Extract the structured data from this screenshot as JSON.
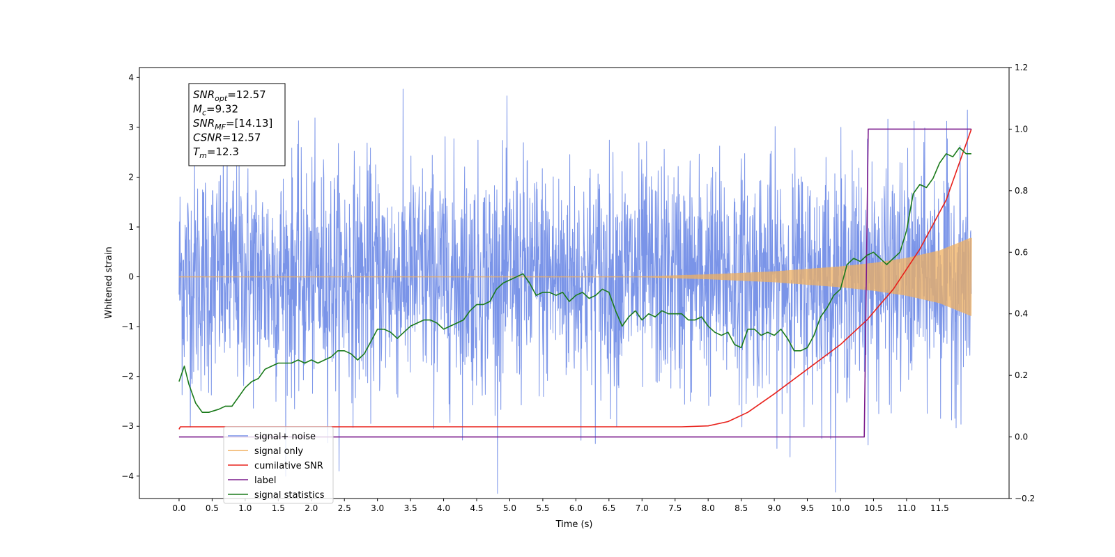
{
  "chart_data": {
    "type": "line",
    "xlabel": "Time (s)",
    "ylabel": "Whitened strain",
    "xlim": [
      -0.6,
      12.55
    ],
    "ylim": [
      -4.45,
      4.2
    ],
    "y2lim": [
      -0.2,
      1.2
    ],
    "x_ticks": [
      "0.0",
      "0.5",
      "1.0",
      "1.5",
      "2.0",
      "2.5",
      "3.0",
      "3.5",
      "4.0",
      "4.5",
      "5.0",
      "5.5",
      "6.0",
      "6.5",
      "7.0",
      "7.5",
      "8.0",
      "8.5",
      "9.0",
      "9.5",
      "10.0",
      "10.5",
      "11.0",
      "11.5"
    ],
    "y_ticks": [
      "4",
      "3",
      "2",
      "1",
      "0",
      "−1",
      "−2",
      "−3",
      "−4"
    ],
    "y2_ticks": [
      "1.2",
      "1.0",
      "0.8",
      "0.6",
      "0.4",
      "0.2",
      "0.0",
      "−0.2"
    ],
    "legend_placement": "lower-left",
    "grid": false,
    "annotation": [
      {
        "name": "SNR",
        "sub": "opt",
        "value": "=12.57"
      },
      {
        "name": "M",
        "sub": "c",
        "value": "=9.32"
      },
      {
        "name": "SNR",
        "sub": "MF",
        "value": "=[14.13]"
      },
      {
        "name": "CSNR",
        "sub": "",
        "value": "=12.57"
      },
      {
        "name": "T",
        "sub": "m",
        "value": "=12.3"
      }
    ],
    "series": [
      {
        "name": "signal+ noise",
        "color": "#7a94e8",
        "axis": "left",
        "kind": "noise",
        "x_range": [
          0.0,
          11.98
        ],
        "std": 1.15,
        "approx_peaks": [
          3.78,
          -4.1
        ]
      },
      {
        "name": "signal only",
        "color": "#f0b060",
        "axis": "left",
        "kind": "chirp",
        "x_range": [
          0.0,
          11.98
        ],
        "envelope_x": [
          0.0,
          7.0,
          8.0,
          9.0,
          10.0,
          10.5,
          11.0,
          11.5,
          11.98
        ],
        "envelope": [
          0.0,
          0.0,
          0.04,
          0.1,
          0.2,
          0.27,
          0.37,
          0.52,
          0.78
        ]
      },
      {
        "name": "cumilative SNR",
        "color": "#e8201a",
        "axis": "right",
        "x": [
          0.0,
          0.02,
          7.6,
          8.0,
          8.3,
          8.6,
          9.0,
          9.5,
          10.0,
          10.4,
          10.8,
          11.2,
          11.6,
          11.98
        ],
        "y": [
          0.025,
          0.033,
          0.033,
          0.036,
          0.05,
          0.08,
          0.14,
          0.22,
          0.3,
          0.38,
          0.48,
          0.61,
          0.77,
          1.0
        ]
      },
      {
        "name": "label",
        "color": "#7a1a8c",
        "axis": "right",
        "x": [
          0.0,
          10.36,
          10.42,
          11.98
        ],
        "y": [
          0.0,
          0.0,
          1.0,
          1.0
        ]
      },
      {
        "name": "signal statistics",
        "color": "#1a7a1a",
        "axis": "right",
        "x": [
          0.0,
          0.08,
          0.15,
          0.25,
          0.35,
          0.45,
          0.6,
          0.7,
          0.8,
          0.9,
          1.0,
          1.1,
          1.2,
          1.3,
          1.4,
          1.5,
          1.6,
          1.7,
          1.8,
          1.9,
          2.0,
          2.1,
          2.2,
          2.3,
          2.4,
          2.5,
          2.6,
          2.7,
          2.8,
          2.9,
          3.0,
          3.1,
          3.2,
          3.3,
          3.4,
          3.5,
          3.6,
          3.7,
          3.8,
          3.9,
          4.0,
          4.1,
          4.2,
          4.3,
          4.4,
          4.5,
          4.6,
          4.7,
          4.8,
          4.9,
          5.0,
          5.1,
          5.2,
          5.3,
          5.4,
          5.5,
          5.6,
          5.7,
          5.8,
          5.9,
          6.0,
          6.1,
          6.2,
          6.3,
          6.4,
          6.5,
          6.6,
          6.7,
          6.8,
          6.9,
          7.0,
          7.1,
          7.2,
          7.3,
          7.4,
          7.5,
          7.6,
          7.7,
          7.8,
          7.9,
          8.0,
          8.1,
          8.2,
          8.3,
          8.4,
          8.5,
          8.6,
          8.7,
          8.8,
          8.9,
          9.0,
          9.1,
          9.2,
          9.3,
          9.4,
          9.5,
          9.6,
          9.7,
          9.8,
          9.9,
          10.0,
          10.1,
          10.2,
          10.3,
          10.4,
          10.5,
          10.6,
          10.7,
          10.8,
          10.9,
          11.0,
          11.1,
          11.2,
          11.3,
          11.4,
          11.5,
          11.6,
          11.7,
          11.8,
          11.9,
          11.98
        ],
        "y": [
          0.18,
          0.23,
          0.17,
          0.11,
          0.08,
          0.08,
          0.09,
          0.1,
          0.1,
          0.13,
          0.16,
          0.18,
          0.19,
          0.22,
          0.23,
          0.24,
          0.24,
          0.24,
          0.25,
          0.24,
          0.25,
          0.24,
          0.25,
          0.26,
          0.28,
          0.28,
          0.27,
          0.25,
          0.27,
          0.31,
          0.35,
          0.35,
          0.34,
          0.32,
          0.34,
          0.36,
          0.37,
          0.38,
          0.38,
          0.37,
          0.35,
          0.36,
          0.37,
          0.38,
          0.41,
          0.43,
          0.43,
          0.44,
          0.48,
          0.5,
          0.51,
          0.52,
          0.53,
          0.5,
          0.46,
          0.47,
          0.47,
          0.46,
          0.47,
          0.44,
          0.46,
          0.47,
          0.45,
          0.46,
          0.48,
          0.47,
          0.41,
          0.36,
          0.39,
          0.41,
          0.38,
          0.4,
          0.39,
          0.41,
          0.4,
          0.4,
          0.4,
          0.38,
          0.38,
          0.39,
          0.36,
          0.34,
          0.33,
          0.34,
          0.3,
          0.29,
          0.35,
          0.35,
          0.33,
          0.34,
          0.33,
          0.35,
          0.32,
          0.28,
          0.28,
          0.29,
          0.33,
          0.39,
          0.42,
          0.46,
          0.48,
          0.56,
          0.58,
          0.57,
          0.59,
          0.6,
          0.58,
          0.56,
          0.58,
          0.6,
          0.67,
          0.79,
          0.82,
          0.81,
          0.84,
          0.89,
          0.92,
          0.91,
          0.94,
          0.92,
          0.92
        ]
      }
    ]
  }
}
